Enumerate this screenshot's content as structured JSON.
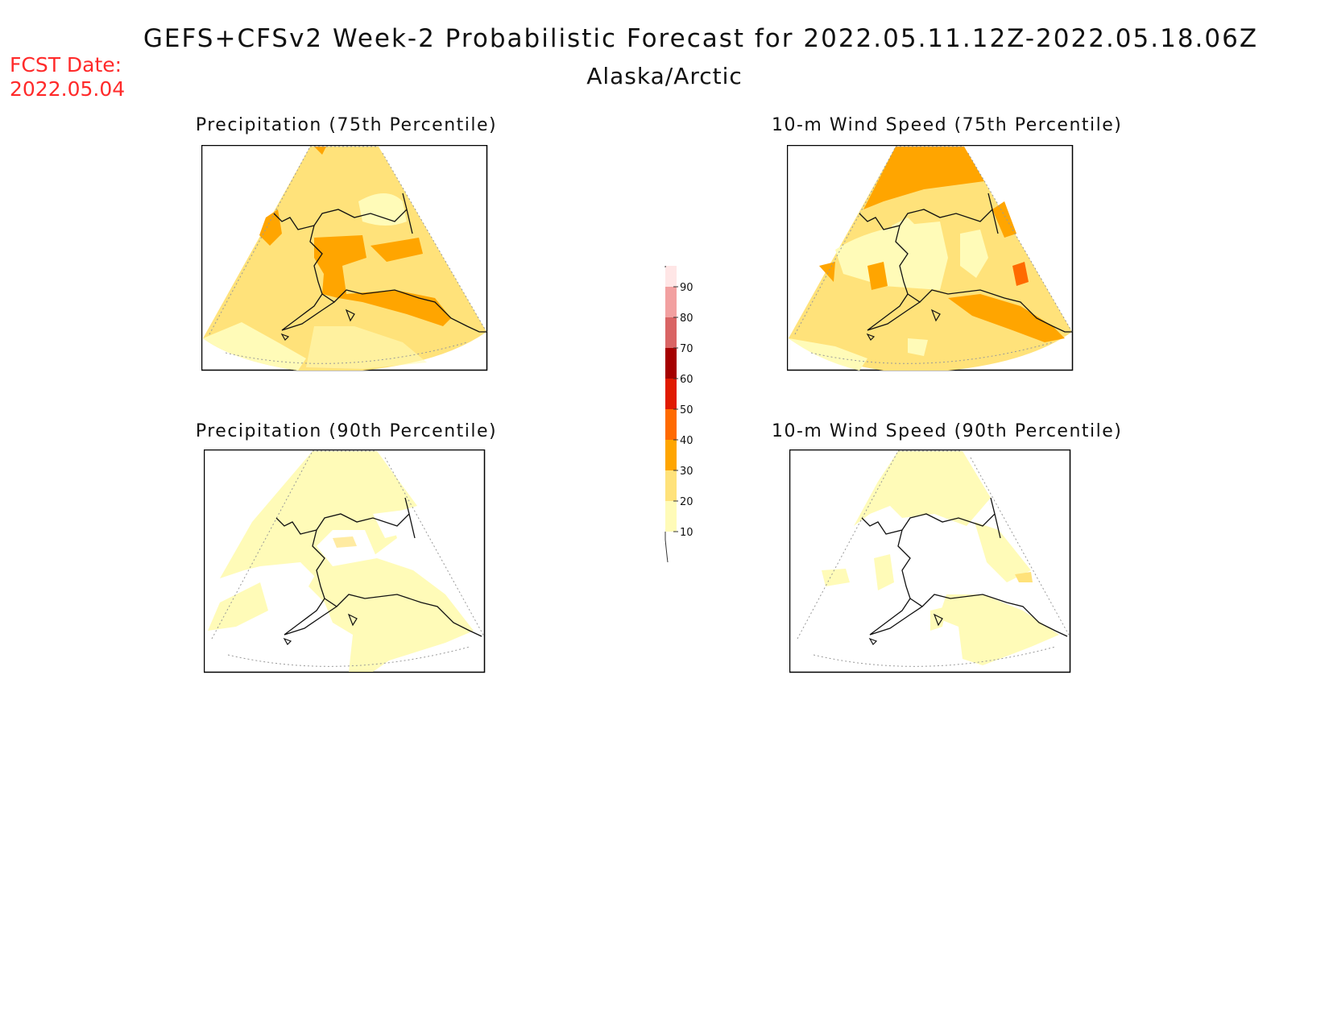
{
  "header": {
    "title": "GEFS+CFSv2 Week-2 Probabilistic Forecast for 2022.05.11.12Z-2022.05.18.06Z",
    "subtitle": "Alaska/Arctic",
    "fcst_label": "FCST Date:",
    "fcst_value": "2022.05.04"
  },
  "panels": [
    {
      "id": "precip75",
      "title": "Precipitation (75th Percentile)"
    },
    {
      "id": "wind75",
      "title": "10-m Wind Speed (75th Percentile)"
    },
    {
      "id": "precip90",
      "title": "Precipitation (90th Percentile)"
    },
    {
      "id": "wind90",
      "title": "10-m Wind Speed (90th Percentile)"
    }
  ],
  "colorbar": {
    "levels": [
      "10",
      "20",
      "30",
      "40",
      "50",
      "60",
      "70",
      "80",
      "90"
    ],
    "colors": [
      "#fffbb8",
      "#ffe27a",
      "#ffa500",
      "#ff6a00",
      "#e01a00",
      "#a50000",
      "#d96464",
      "#f2a0a0",
      "#ffe6e6"
    ]
  },
  "palette": {
    "lightest": "#fffbb8",
    "light": "#ffe27a",
    "orange": "#ffa500",
    "dark_orange": "#ff6a00",
    "red": "#e01a00"
  }
}
